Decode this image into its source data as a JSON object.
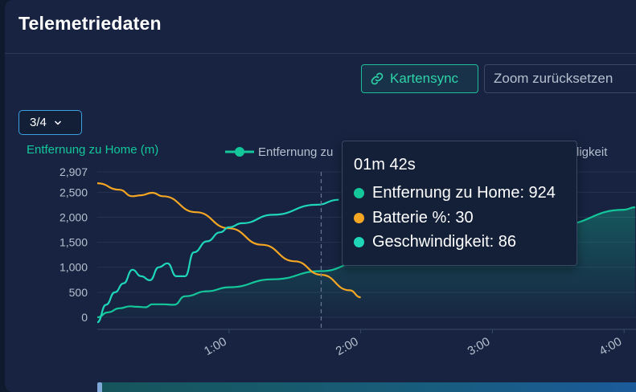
{
  "header": {
    "title": "Telemetriedaten"
  },
  "toolbar": {
    "sync_label": "Kartensync",
    "reset_label": "Zoom zurücksetzen"
  },
  "selector": {
    "value": "3/4"
  },
  "tooltip": {
    "time": "01m 42s",
    "rows": [
      {
        "label": "Entfernung zu Home: 924",
        "color": "#14c79b"
      },
      {
        "label": "Batterie %: 30",
        "color": "#f5a623"
      },
      {
        "label": "Geschwindigkeit: 86",
        "color": "#1fd6b8"
      }
    ]
  },
  "chart_data": {
    "type": "line",
    "ylabel": "Entfernung zu Home (m)",
    "legend": {
      "visible_text": [
        "Entfernung zu",
        "digkeit"
      ],
      "placement": "top"
    },
    "y_ticks": [
      "2,907",
      "2,500",
      "2,000",
      "1,500",
      "1,000",
      "500",
      "0"
    ],
    "y_tick_values": [
      2907,
      2500,
      2000,
      1500,
      1000,
      500,
      0
    ],
    "x_ticks": [
      "1:00",
      "2:00",
      "3:00",
      "4:00"
    ],
    "x_tick_values": [
      60,
      120,
      180,
      240
    ],
    "xlim": [
      0,
      245
    ],
    "ylim": [
      0,
      2907
    ],
    "crosshair_x": 102,
    "series": [
      {
        "name": "Entfernung zu Home",
        "color": "#14c79b",
        "area": true,
        "x": [
          0,
          5,
          10,
          15,
          18,
          22,
          25,
          30,
          35,
          40,
          50,
          60,
          80,
          102,
          120,
          150,
          180,
          210,
          240,
          245
        ],
        "y": [
          0,
          100,
          180,
          220,
          210,
          200,
          260,
          260,
          250,
          420,
          520,
          600,
          760,
          924,
          1100,
          1350,
          1600,
          1850,
          2150,
          2200
        ]
      },
      {
        "name": "Batterie %",
        "color": "#f5a623",
        "x": [
          0,
          10,
          16,
          20,
          25,
          30,
          45,
          60,
          75,
          90,
          102,
          115,
          120
        ],
        "y": [
          2680,
          2550,
          2420,
          2440,
          2490,
          2420,
          2100,
          1780,
          1450,
          1120,
          850,
          540,
          400
        ]
      },
      {
        "name": "Geschwindigkeit",
        "color": "#1fd6b8",
        "x": [
          0,
          4,
          8,
          12,
          16,
          20,
          24,
          28,
          32,
          36,
          40,
          44,
          50,
          56,
          60,
          66,
          80,
          100,
          110
        ],
        "y": [
          -100,
          250,
          500,
          680,
          950,
          820,
          740,
          1000,
          1080,
          820,
          820,
          1300,
          1520,
          1700,
          1800,
          1880,
          2050,
          2250,
          2350
        ]
      }
    ]
  }
}
